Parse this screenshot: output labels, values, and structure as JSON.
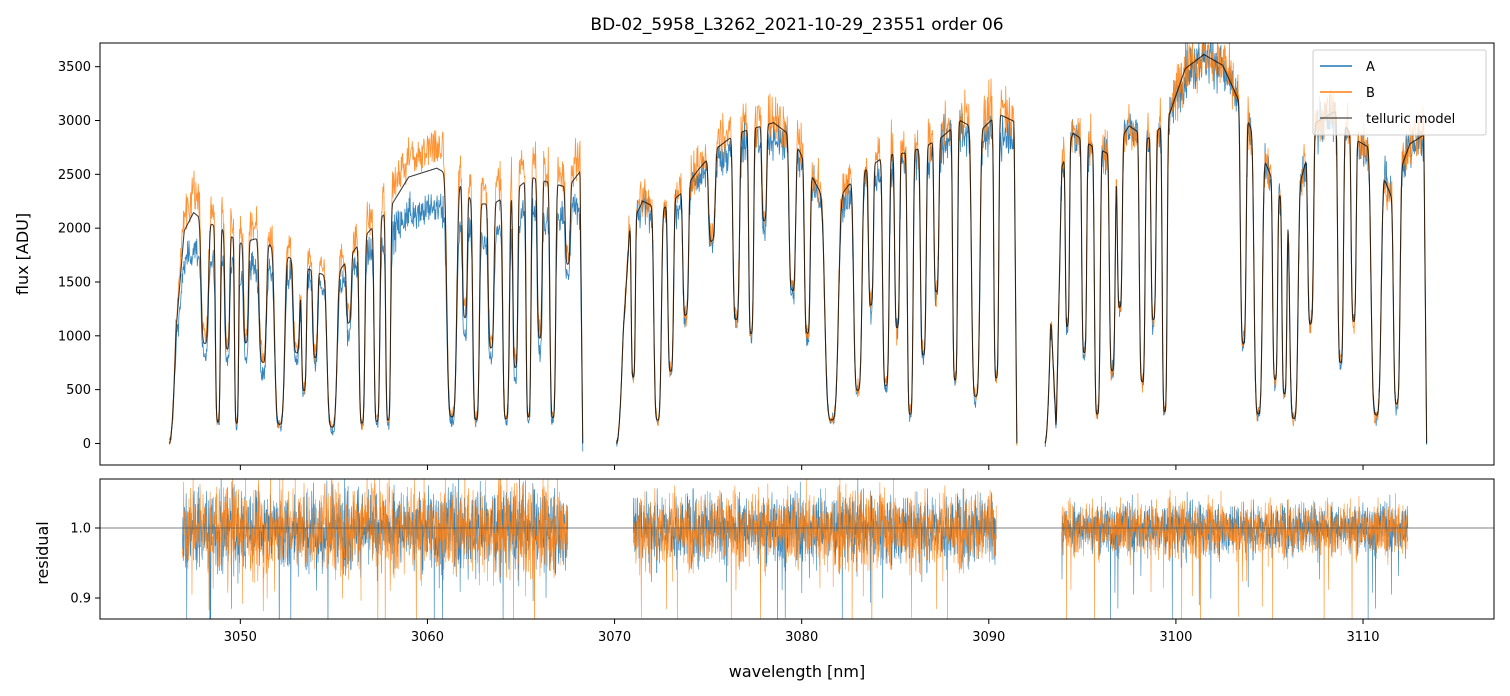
{
  "chart_data": [
    {
      "type": "line",
      "panel": "top",
      "title": "BD-02_5958_L3262_2021-10-29_23551  order 06",
      "xlabel": "",
      "ylabel": "flux [ADU]",
      "xlim": [
        3042.5,
        3117
      ],
      "ylim": [
        -200,
        3720
      ],
      "yticks": [
        0,
        500,
        1000,
        1500,
        2000,
        2500,
        3000,
        3500
      ],
      "xticks": [
        3050,
        3060,
        3070,
        3080,
        3090,
        3100,
        3110
      ],
      "legend": {
        "placement": "top-right",
        "entries": [
          "A",
          "B",
          "telluric model"
        ]
      },
      "colors": {
        "A": "#1f77b4",
        "B": "#ff7f0e",
        "model": "#000000"
      },
      "series_names": [
        "A",
        "B",
        "telluric model"
      ],
      "segments": [
        {
          "range": [
            3046.2,
            3068.3
          ],
          "env_A": [
            [
              3046.2,
              0
            ],
            [
              3046.6,
              1000
            ],
            [
              3047.0,
              1650
            ],
            [
              3047.5,
              1820
            ],
            [
              3048.0,
              1750
            ],
            [
              3049.0,
              1700
            ],
            [
              3050.0,
              1600
            ],
            [
              3051.0,
              1650
            ],
            [
              3052.0,
              1600
            ],
            [
              3053.5,
              1500
            ],
            [
              3055.0,
              1400
            ],
            [
              3056.5,
              1700
            ],
            [
              3058.0,
              1900
            ],
            [
              3059.0,
              2150
            ],
            [
              3060.5,
              2200
            ],
            [
              3061.5,
              2100
            ],
            [
              3062.5,
              1900
            ],
            [
              3063.5,
              1900
            ],
            [
              3064.5,
              2000
            ],
            [
              3065.5,
              2150
            ],
            [
              3066.5,
              2100
            ],
            [
              3067.5,
              2150
            ],
            [
              3068.3,
              2200
            ]
          ],
          "env_B": [
            [
              3046.2,
              0
            ],
            [
              3046.6,
              1200
            ],
            [
              3047.0,
              2150
            ],
            [
              3047.5,
              2320
            ],
            [
              3048.0,
              2250
            ],
            [
              3049.0,
              2150
            ],
            [
              3050.0,
              2000
            ],
            [
              3051.0,
              2050
            ],
            [
              3052.0,
              1900
            ],
            [
              3053.5,
              1700
            ],
            [
              3055.0,
              1600
            ],
            [
              3056.5,
              2000
            ],
            [
              3058.0,
              2350
            ],
            [
              3059.0,
              2650
            ],
            [
              3060.5,
              2750
            ],
            [
              3061.5,
              2650
            ],
            [
              3062.5,
              2400
            ],
            [
              3063.5,
              2400
            ],
            [
              3064.5,
              2500
            ],
            [
              3065.5,
              2650
            ],
            [
              3066.5,
              2600
            ],
            [
              3067.5,
              2500
            ],
            [
              3068.3,
              2750
            ]
          ],
          "dips": [
            [
              3048.1,
              0.55,
              0.45
            ],
            [
              3048.8,
              0.9,
              0.3
            ],
            [
              3049.3,
              0.55,
              0.3
            ],
            [
              3049.8,
              0.9,
              0.25
            ],
            [
              3050.3,
              0.5,
              0.3
            ],
            [
              3051.2,
              0.6,
              0.45
            ],
            [
              3052.1,
              0.9,
              0.6
            ],
            [
              3053.0,
              0.5,
              0.4
            ],
            [
              3053.4,
              0.7,
              0.3
            ],
            [
              3054.0,
              0.5,
              0.3
            ],
            [
              3054.9,
              0.9,
              0.6
            ],
            [
              3055.8,
              0.35,
              0.3
            ],
            [
              3056.5,
              0.9,
              0.35
            ],
            [
              3057.3,
              0.9,
              0.35
            ],
            [
              3057.9,
              0.9,
              0.3
            ],
            [
              3061.3,
              0.9,
              0.6
            ],
            [
              3062.0,
              0.5,
              0.3
            ],
            [
              3062.6,
              0.9,
              0.4
            ],
            [
              3063.4,
              0.6,
              0.35
            ],
            [
              3064.2,
              0.9,
              0.4
            ],
            [
              3064.7,
              0.7,
              0.3
            ],
            [
              3065.4,
              0.9,
              0.3
            ],
            [
              3066.0,
              0.6,
              0.3
            ],
            [
              3066.7,
              0.9,
              0.35
            ],
            [
              3067.5,
              0.3,
              0.3
            ]
          ]
        },
        {
          "range": [
            3070.1,
            3091.5
          ],
          "env_A": [
            [
              3070.1,
              0
            ],
            [
              3070.8,
              1950
            ],
            [
              3071.5,
              2200
            ],
            [
              3072.5,
              2100
            ],
            [
              3073.5,
              2250
            ],
            [
              3074.5,
              2450
            ],
            [
              3075.5,
              2650
            ],
            [
              3076.5,
              2750
            ],
            [
              3077.5,
              2800
            ],
            [
              3078.5,
              2850
            ],
            [
              3079.5,
              2750
            ],
            [
              3080.5,
              2400
            ],
            [
              3081.5,
              2100
            ],
            [
              3082.5,
              2300
            ],
            [
              3083.5,
              2450
            ],
            [
              3084.5,
              2550
            ],
            [
              3085.5,
              2600
            ],
            [
              3086.5,
              2650
            ],
            [
              3087.5,
              2750
            ],
            [
              3088.5,
              2900
            ],
            [
              3089.5,
              2800
            ],
            [
              3090.5,
              2900
            ],
            [
              3091.5,
              2850
            ]
          ],
          "env_B": [
            [
              3070.1,
              0
            ],
            [
              3070.8,
              2000
            ],
            [
              3071.5,
              2280
            ],
            [
              3072.5,
              2200
            ],
            [
              3073.5,
              2350
            ],
            [
              3074.5,
              2600
            ],
            [
              3075.5,
              2800
            ],
            [
              3076.5,
              2950
            ],
            [
              3077.5,
              3000
            ],
            [
              3078.5,
              3050
            ],
            [
              3079.5,
              2900
            ],
            [
              3080.5,
              2550
            ],
            [
              3081.5,
              2200
            ],
            [
              3082.5,
              2450
            ],
            [
              3083.5,
              2600
            ],
            [
              3084.5,
              2750
            ],
            [
              3085.5,
              2750
            ],
            [
              3086.5,
              2800
            ],
            [
              3087.5,
              2900
            ],
            [
              3088.5,
              3050
            ],
            [
              3089.5,
              2950
            ],
            [
              3090.5,
              3150
            ],
            [
              3091.5,
              3050
            ]
          ],
          "dips": [
            [
              3071.0,
              0.7,
              0.25
            ],
            [
              3072.3,
              0.9,
              0.45
            ],
            [
              3073.0,
              0.7,
              0.35
            ],
            [
              3073.8,
              0.5,
              0.35
            ],
            [
              3075.2,
              0.3,
              0.4
            ],
            [
              3076.5,
              0.6,
              0.4
            ],
            [
              3077.3,
              0.65,
              0.3
            ],
            [
              3078.0,
              0.3,
              0.3
            ],
            [
              3079.5,
              0.5,
              0.4
            ],
            [
              3080.3,
              0.6,
              0.35
            ],
            [
              3081.6,
              0.9,
              0.8
            ],
            [
              3083.0,
              0.8,
              0.5
            ],
            [
              3083.7,
              0.5,
              0.3
            ],
            [
              3084.5,
              0.8,
              0.4
            ],
            [
              3085.1,
              0.6,
              0.3
            ],
            [
              3085.8,
              0.9,
              0.35
            ],
            [
              3086.5,
              0.7,
              0.35
            ],
            [
              3087.2,
              0.5,
              0.3
            ],
            [
              3088.2,
              0.8,
              0.3
            ],
            [
              3089.3,
              0.85,
              0.5
            ],
            [
              3090.4,
              0.8,
              0.3
            ]
          ]
        },
        {
          "range": [
            3093.0,
            3113.4
          ],
          "env_A": [
            [
              3093.0,
              0
            ],
            [
              3093.3,
              1250
            ],
            [
              3093.6,
              100
            ],
            [
              3093.9,
              2500
            ],
            [
              3094.5,
              2850
            ],
            [
              3095.5,
              2700
            ],
            [
              3096.5,
              2650
            ],
            [
              3097.5,
              2950
            ],
            [
              3098.5,
              2800
            ],
            [
              3099.5,
              2950
            ],
            [
              3100.5,
              3450
            ],
            [
              3101.5,
              3600
            ],
            [
              3102.5,
              3500
            ],
            [
              3103.5,
              3100
            ],
            [
              3104.5,
              2700
            ],
            [
              3105.5,
              2300
            ],
            [
              3106.5,
              2300
            ],
            [
              3107.5,
              2950
            ],
            [
              3108.5,
              3050
            ],
            [
              3109.5,
              2800
            ],
            [
              3110.5,
              2700
            ],
            [
              3111.5,
              2300
            ],
            [
              3112.5,
              2750
            ],
            [
              3113.4,
              2850
            ]
          ],
          "env_B": [
            [
              3093.0,
              0
            ],
            [
              3093.3,
              1300
            ],
            [
              3093.6,
              150
            ],
            [
              3093.9,
              2600
            ],
            [
              3094.5,
              2900
            ],
            [
              3095.5,
              2800
            ],
            [
              3096.5,
              2700
            ],
            [
              3097.5,
              2950
            ],
            [
              3098.5,
              2850
            ],
            [
              3099.5,
              3000
            ],
            [
              3100.5,
              3500
            ],
            [
              3101.5,
              3620
            ],
            [
              3102.5,
              3520
            ],
            [
              3103.5,
              3150
            ],
            [
              3104.5,
              2750
            ],
            [
              3105.5,
              2300
            ],
            [
              3106.5,
              2350
            ],
            [
              3107.5,
              3000
            ],
            [
              3108.5,
              3100
            ],
            [
              3109.5,
              2850
            ],
            [
              3110.5,
              2750
            ],
            [
              3111.5,
              2300
            ],
            [
              3112.5,
              2800
            ],
            [
              3113.4,
              2900
            ]
          ],
          "dips": [
            [
              3094.2,
              0.6,
              0.25
            ],
            [
              3095.1,
              0.7,
              0.3
            ],
            [
              3095.8,
              0.9,
              0.35
            ],
            [
              3096.6,
              0.75,
              0.35
            ],
            [
              3097.0,
              0.55,
              0.3
            ],
            [
              3098.2,
              0.8,
              0.35
            ],
            [
              3098.8,
              0.6,
              0.3
            ],
            [
              3099.4,
              0.9,
              0.3
            ],
            [
              3103.6,
              0.7,
              0.35
            ],
            [
              3104.4,
              0.9,
              0.5
            ],
            [
              3105.3,
              0.75,
              0.3
            ],
            [
              3105.8,
              0.8,
              0.3
            ],
            [
              3106.3,
              0.9,
              0.5
            ],
            [
              3107.2,
              0.6,
              0.35
            ],
            [
              3108.8,
              0.75,
              0.35
            ],
            [
              3109.5,
              0.6,
              0.3
            ],
            [
              3110.7,
              0.9,
              0.6
            ],
            [
              3111.8,
              0.85,
              0.4
            ]
          ]
        }
      ]
    },
    {
      "type": "line",
      "panel": "bottom",
      "xlabel": "wavelength [nm]",
      "ylabel": "residual",
      "xlim": [
        3042.5,
        3117
      ],
      "ylim": [
        0.87,
        1.07
      ],
      "yticks": [
        0.9,
        1.0
      ],
      "xticks": [
        3050,
        3060,
        3070,
        3080,
        3090,
        3100,
        3110
      ],
      "reference_line": 1.0,
      "segments": [
        {
          "range": [
            3046.9,
            3067.5
          ],
          "noise": 0.03
        },
        {
          "range": [
            3071.0,
            3090.4
          ],
          "noise": 0.025
        },
        {
          "range": [
            3093.9,
            3112.4
          ],
          "noise": 0.018
        }
      ]
    }
  ]
}
